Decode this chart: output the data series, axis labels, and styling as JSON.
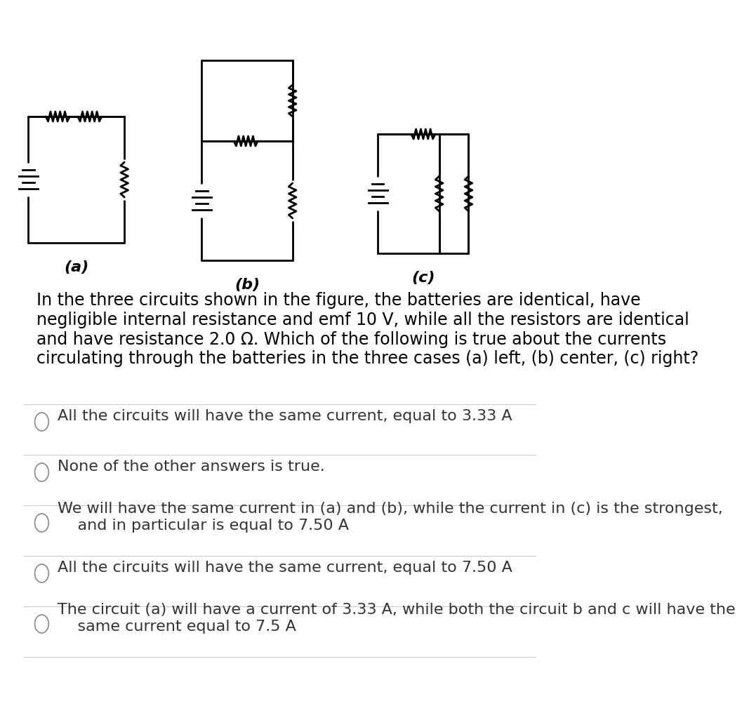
{
  "background_color": "#ffffff",
  "text_color": "#000000",
  "question_text": "In the three circuits shown in the figure, the batteries are identical, have\nnegligible internal resistance and emf 10 V, while all the resistors are identical\nand have resistance 2.0 Ω. Which of the following is true about the currents\ncirculating through the batteries in the three cases (a) left, (b) center, (c) right?",
  "options": [
    "All the circuits will have the same current, equal to 3.33 A",
    "None of the other answers is true.",
    "We will have the same current in (a) and (b), while the current in (c) is the strongest,\n    and in particular is equal to 7.50 A",
    "All the circuits will have the same current, equal to 7.50 A",
    "The circuit (a) will have a current of 3.33 A, while both the circuit b and c will have the\n    same current equal to 7.5 A"
  ],
  "circuit_labels": [
    "(a)",
    "(b)",
    "(c)"
  ],
  "separator_color": "#cccccc",
  "option_text_color": "#333333",
  "question_font_size": 17,
  "option_font_size": 16,
  "label_font_size": 16
}
